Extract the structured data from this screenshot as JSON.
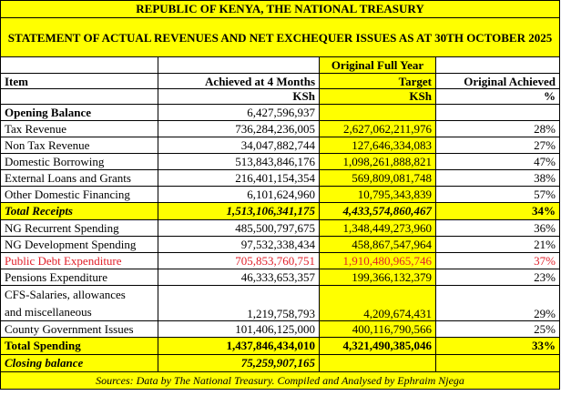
{
  "title_line1": "REPUBLIC OF KENYA, THE NATIONAL TREASURY",
  "title_line2": "STATEMENT OF ACTUAL REVENUES AND NET EXCHEQUER ISSUES AS AT 30TH OCTOBER 2025",
  "headers": {
    "item": "Item",
    "achieved": "Achieved at 4 Months",
    "target_line1": "Original Full Year",
    "target_line2": "Target",
    "pct": "Original Achieved",
    "achieved_unit": "KSh",
    "target_unit": "KSh",
    "pct_unit": "%"
  },
  "rows": {
    "opening": {
      "item": "Opening Balance",
      "achieved": "6,427,596,937",
      "target": "",
      "pct": ""
    },
    "tax": {
      "item": "Tax Revenue",
      "achieved": "736,284,236,005",
      "target": "2,627,062,211,976",
      "pct": "28%"
    },
    "nontax": {
      "item": "Non Tax Revenue",
      "achieved": "34,047,882,744",
      "target": "127,646,334,083",
      "pct": "27%"
    },
    "domestic": {
      "item": "Domestic Borrowing",
      "achieved": "513,843,846,176",
      "target": "1,098,261,888,821",
      "pct": "47%"
    },
    "external": {
      "item": "External Loans and Grants",
      "achieved": "216,401,154,354",
      "target": "569,809,081,748",
      "pct": "38%"
    },
    "otherdom": {
      "item": "Other Domestic Financing",
      "achieved": "6,101,624,960",
      "target": "10,795,343,839",
      "pct": "57%"
    },
    "total_receipts": {
      "item": "Total Receipts",
      "achieved": "1,513,106,341,175",
      "target": "4,433,574,860,467",
      "pct": "34%"
    },
    "recurrent": {
      "item": "NG Recurrent Spending",
      "achieved": "485,500,797,675",
      "target": "1,348,449,273,960",
      "pct": "36%"
    },
    "development": {
      "item": "NG Development Spending",
      "achieved": "97,532,338,434",
      "target": "458,867,547,964",
      "pct": "21%"
    },
    "debt": {
      "item": "Public Debt Expenditure",
      "achieved": "705,853,760,751",
      "target": "1,910,480,965,746",
      "pct": "37%"
    },
    "pensions": {
      "item": "Pensions Expenditure",
      "achieved": "46,333,653,357",
      "target": "199,366,132,379",
      "pct": "23%"
    },
    "cfs": {
      "item_line1": "CFS-Salaries, allowances",
      "item_line2": "and miscellaneous",
      "achieved": "1,219,758,793",
      "target": "4,209,674,431",
      "pct": "29%"
    },
    "county": {
      "item": "County Government Issues",
      "achieved": "101,406,125,000",
      "target": "400,116,790,566",
      "pct": "25%"
    },
    "total_spending": {
      "item": "Total Spending",
      "achieved": "1,437,846,434,010",
      "target": "4,321,490,385,046",
      "pct": "33%"
    },
    "closing": {
      "item": "Closing balance",
      "achieved": "75,259,907,165"
    }
  },
  "source": "Sources: Data by The National Treasury. Compiled and Analysed by Ephraim Njega",
  "colors": {
    "highlight": "#ffff00",
    "debt_text": "#e0202a"
  }
}
